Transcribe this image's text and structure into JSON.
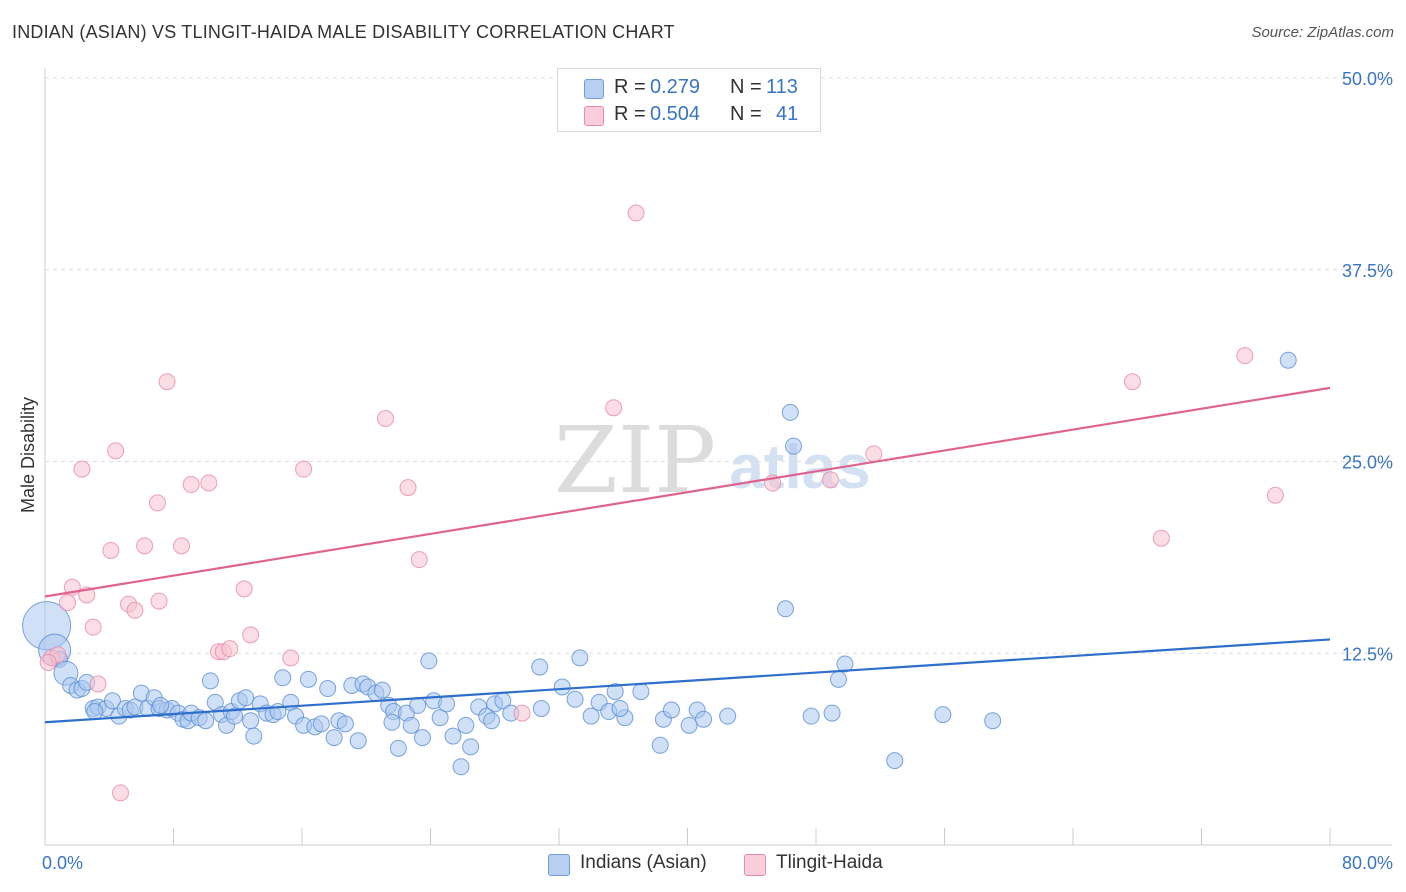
{
  "title": "INDIAN (ASIAN) VS TLINGIT-HAIDA MALE DISABILITY CORRELATION CHART",
  "source": "Source: ZipAtlas.com",
  "watermark": {
    "zip": "ZIP",
    "atlas": "atlas"
  },
  "legend": {
    "r_label": "R =",
    "n_label": "N =",
    "rows": [
      {
        "r": "0.279",
        "n": "113",
        "color": "#a9c6ee",
        "border": "#6f9fd8"
      },
      {
        "r": "0.504",
        "n": "41",
        "color": "#f7c1d0",
        "border": "#e88aa8"
      }
    ]
  },
  "colors": {
    "blue_fill": "#a9c6ee",
    "blue_stroke": "#5b8fd6",
    "blue_line": "#2e6fcb",
    "pink_fill": "#f7c1d0",
    "pink_stroke": "#e88aa8",
    "pink_line": "#e0628f",
    "axis_label": "#3a75c4",
    "grid": "#dddddd"
  },
  "chart_data": {
    "type": "scatter",
    "title": "INDIAN (ASIAN) VS TLINGIT-HAIDA MALE DISABILITY CORRELATION CHART",
    "xlabel": "",
    "ylabel": "Male Disability",
    "xlim": [
      0,
      80
    ],
    "ylim": [
      0,
      50
    ],
    "x_tick_labels": [
      "0.0%",
      "80.0%"
    ],
    "y_ticks": [
      12.5,
      25.0,
      37.5,
      50.0
    ],
    "y_tick_labels": [
      "12.5%",
      "25.0%",
      "37.5%",
      "50.0%"
    ],
    "series": [
      {
        "name": "Indians (Asian)",
        "r": 0.279,
        "n": 113,
        "trend": [
          [
            0,
            8.0
          ],
          [
            80,
            13.4
          ]
        ],
        "points": [
          [
            0.1,
            14.3,
            3
          ],
          [
            0.6,
            12.7,
            2
          ],
          [
            0.9,
            12.1,
            1
          ],
          [
            1.3,
            11.2,
            1.5
          ],
          [
            1.6,
            10.4,
            1
          ],
          [
            2.0,
            10.1,
            1
          ],
          [
            2.3,
            10.2,
            1
          ],
          [
            2.6,
            10.6,
            1
          ],
          [
            3.0,
            8.9,
            1
          ],
          [
            3.3,
            9.0,
            1
          ],
          [
            3.8,
            8.9,
            1
          ],
          [
            4.2,
            9.4,
            1
          ],
          [
            4.6,
            8.4,
            1
          ],
          [
            5.0,
            8.9,
            1
          ],
          [
            5.3,
            8.8,
            1
          ],
          [
            5.6,
            9.0,
            1
          ],
          [
            6.0,
            9.9,
            1
          ],
          [
            6.4,
            8.9,
            1
          ],
          [
            6.8,
            9.6,
            1
          ],
          [
            7.1,
            8.9,
            1
          ],
          [
            7.6,
            8.8,
            1
          ],
          [
            7.9,
            8.9,
            1
          ],
          [
            8.3,
            8.6,
            1
          ],
          [
            8.6,
            8.2,
            1
          ],
          [
            8.9,
            8.1,
            1
          ],
          [
            9.1,
            8.6,
            1
          ],
          [
            9.6,
            8.3,
            1
          ],
          [
            10.0,
            8.1,
            1
          ],
          [
            10.3,
            10.7,
            1
          ],
          [
            10.6,
            9.3,
            1
          ],
          [
            11.0,
            8.5,
            1
          ],
          [
            11.3,
            7.8,
            1
          ],
          [
            11.6,
            8.7,
            1
          ],
          [
            12.1,
            9.4,
            1
          ],
          [
            12.5,
            9.6,
            1
          ],
          [
            12.8,
            8.1,
            1
          ],
          [
            13.0,
            7.1,
            1
          ],
          [
            13.4,
            9.2,
            1
          ],
          [
            13.8,
            8.6,
            1
          ],
          [
            14.2,
            8.5,
            1
          ],
          [
            14.5,
            8.7,
            1
          ],
          [
            14.8,
            10.9,
            1
          ],
          [
            15.3,
            9.3,
            1
          ],
          [
            15.6,
            8.4,
            1
          ],
          [
            16.1,
            7.8,
            1
          ],
          [
            16.4,
            10.8,
            1
          ],
          [
            16.8,
            7.7,
            1
          ],
          [
            17.2,
            7.9,
            1
          ],
          [
            17.6,
            10.2,
            1
          ],
          [
            18.0,
            7.0,
            1
          ],
          [
            18.3,
            8.1,
            1
          ],
          [
            18.7,
            7.9,
            1
          ],
          [
            19.1,
            10.4,
            1
          ],
          [
            19.8,
            10.5,
            1
          ],
          [
            19.5,
            6.8,
            1
          ],
          [
            20.1,
            10.3,
            1
          ],
          [
            20.6,
            9.9,
            1
          ],
          [
            21.0,
            10.1,
            1
          ],
          [
            21.4,
            9.1,
            1
          ],
          [
            21.7,
            8.7,
            1
          ],
          [
            22.0,
            6.3,
            1
          ],
          [
            22.5,
            8.6,
            1
          ],
          [
            22.8,
            7.8,
            1
          ],
          [
            23.2,
            9.1,
            1
          ],
          [
            23.5,
            7.0,
            1
          ],
          [
            23.9,
            12.0,
            1
          ],
          [
            24.2,
            9.4,
            1
          ],
          [
            24.6,
            8.3,
            1
          ],
          [
            25.0,
            9.2,
            1
          ],
          [
            25.4,
            7.1,
            1
          ],
          [
            25.9,
            5.1,
            1
          ],
          [
            26.2,
            7.8,
            1
          ],
          [
            26.5,
            6.4,
            1
          ],
          [
            27.0,
            9.0,
            1
          ],
          [
            27.5,
            8.4,
            1
          ],
          [
            28.0,
            9.2,
            1
          ],
          [
            28.5,
            9.4,
            1
          ],
          [
            29.0,
            8.6,
            1
          ],
          [
            30.8,
            11.6,
            1
          ],
          [
            30.9,
            8.9,
            1
          ],
          [
            32.2,
            10.3,
            1
          ],
          [
            33.0,
            9.5,
            1
          ],
          [
            33.3,
            12.2,
            1
          ],
          [
            34.0,
            8.4,
            1
          ],
          [
            34.5,
            9.3,
            1
          ],
          [
            35.1,
            8.7,
            1
          ],
          [
            35.5,
            10.0,
            1
          ],
          [
            36.1,
            8.3,
            1
          ],
          [
            37.1,
            10.0,
            1
          ],
          [
            38.5,
            8.2,
            1
          ],
          [
            38.3,
            6.5,
            1
          ],
          [
            39.0,
            8.8,
            1
          ],
          [
            40.1,
            7.8,
            1
          ],
          [
            40.6,
            8.8,
            1
          ],
          [
            41.0,
            8.2,
            1
          ],
          [
            42.5,
            8.4,
            1
          ],
          [
            46.1,
            15.4,
            1
          ],
          [
            46.4,
            28.2,
            1
          ],
          [
            46.6,
            26.0,
            1
          ],
          [
            47.7,
            8.4,
            1
          ],
          [
            49.0,
            8.6,
            1
          ],
          [
            49.4,
            10.8,
            1
          ],
          [
            49.8,
            11.8,
            1
          ],
          [
            52.9,
            5.5,
            1
          ],
          [
            55.9,
            8.5,
            1
          ],
          [
            59.0,
            8.1,
            1
          ],
          [
            77.4,
            31.6,
            1
          ],
          [
            3.1,
            8.7,
            1
          ],
          [
            7.2,
            9.1,
            1
          ],
          [
            11.8,
            8.4,
            1
          ],
          [
            21.6,
            8.0,
            1
          ],
          [
            27.8,
            8.1,
            1
          ],
          [
            35.8,
            8.9,
            1
          ]
        ]
      },
      {
        "name": "Tlingit-Haida",
        "r": 0.504,
        "n": 41,
        "trend": [
          [
            0,
            16.2
          ],
          [
            80,
            29.8
          ]
        ],
        "points": [
          [
            0.4,
            12.2,
            1
          ],
          [
            0.8,
            12.4,
            1
          ],
          [
            1.4,
            15.8,
            1
          ],
          [
            1.7,
            16.8,
            1
          ],
          [
            2.3,
            24.5,
            1
          ],
          [
            2.6,
            16.3,
            1
          ],
          [
            3.0,
            14.2,
            1
          ],
          [
            3.3,
            10.5,
            1
          ],
          [
            4.1,
            19.2,
            1
          ],
          [
            4.4,
            25.7,
            1
          ],
          [
            4.7,
            3.4,
            1
          ],
          [
            5.2,
            15.7,
            1
          ],
          [
            5.6,
            15.3,
            1
          ],
          [
            6.2,
            19.5,
            1
          ],
          [
            7.0,
            22.3,
            1
          ],
          [
            7.1,
            15.9,
            1
          ],
          [
            7.6,
            30.2,
            1
          ],
          [
            8.5,
            19.5,
            1
          ],
          [
            9.1,
            23.5,
            1
          ],
          [
            10.2,
            23.6,
            1
          ],
          [
            10.8,
            12.6,
            1
          ],
          [
            11.1,
            12.6,
            1
          ],
          [
            11.5,
            12.8,
            1
          ],
          [
            12.4,
            16.7,
            1
          ],
          [
            12.8,
            13.7,
            1
          ],
          [
            15.3,
            12.2,
            1
          ],
          [
            16.1,
            24.5,
            1
          ],
          [
            21.2,
            27.8,
            1
          ],
          [
            22.6,
            23.3,
            1
          ],
          [
            23.3,
            18.6,
            1
          ],
          [
            29.7,
            8.6,
            1
          ],
          [
            35.4,
            28.5,
            1
          ],
          [
            36.8,
            41.2,
            1
          ],
          [
            45.3,
            23.6,
            1
          ],
          [
            48.9,
            23.8,
            1
          ],
          [
            51.6,
            25.5,
            1
          ],
          [
            67.7,
            30.2,
            1
          ],
          [
            69.5,
            20.0,
            1
          ],
          [
            74.7,
            31.9,
            1
          ],
          [
            76.6,
            22.8,
            1
          ],
          [
            0.2,
            11.9,
            1
          ]
        ]
      }
    ]
  }
}
